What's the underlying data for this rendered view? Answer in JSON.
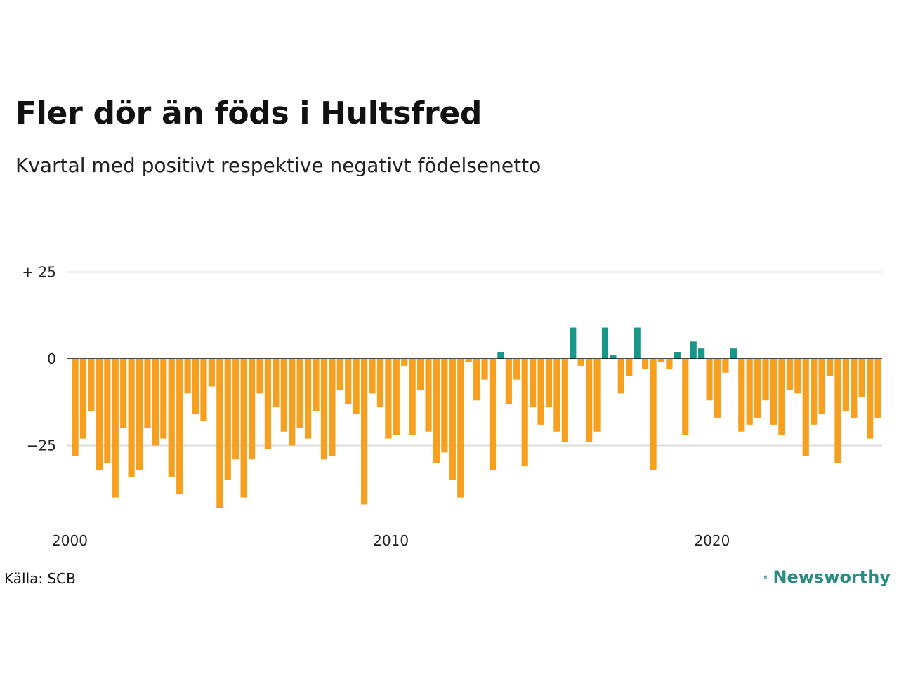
{
  "header": {
    "title": "Fler dör än föds i Hultsfred",
    "subtitle": "Kvartal med positivt respektive negativt födelsenetto"
  },
  "footer": {
    "source": "Källa: SCB",
    "brand": "Newsworthy",
    "brand_icon": "newsworthy-logo-icon"
  },
  "colors": {
    "positive": "#1a9688",
    "negative": "#f7a01f",
    "grid": "#dcdcdc",
    "zero_line": "#111111",
    "brand": "#2a8c80"
  },
  "chart_data": {
    "type": "bar",
    "y_ticks": [
      {
        "value": 25,
        "label": "+ 25"
      },
      {
        "value": 0,
        "label": "0"
      },
      {
        "value": -25,
        "label": "−25"
      }
    ],
    "x_ticks": [
      {
        "value": 2000,
        "label": "2000"
      },
      {
        "value": 2010,
        "label": "2010"
      },
      {
        "value": 2020,
        "label": "2020"
      }
    ],
    "x_range": [
      2000,
      2025.25
    ],
    "ylim": [
      -45,
      30
    ],
    "grid": true,
    "x_unit": "kvartal",
    "start_year": 2000,
    "values": [
      -28,
      -23,
      -15,
      -32,
      -30,
      -40,
      -20,
      -34,
      -32,
      -20,
      -25,
      -23,
      -34,
      -39,
      -10,
      -16,
      -18,
      -8,
      -43,
      -35,
      -29,
      -40,
      -29,
      -10,
      -26,
      -14,
      -21,
      -25,
      -20,
      -23,
      -15,
      -29,
      -28,
      -9,
      -13,
      -16,
      -42,
      -10,
      -14,
      -23,
      -22,
      -2,
      -22,
      -9,
      -21,
      -30,
      -27,
      -35,
      -40,
      -1,
      -12,
      -6,
      -32,
      2,
      -13,
      -6,
      -31,
      -14,
      -19,
      -14,
      -21,
      -24,
      9,
      -2,
      -24,
      -21,
      9,
      1,
      -10,
      -5,
      9,
      -3,
      -32,
      -1,
      -3,
      2,
      -22,
      5,
      3,
      -12,
      -17,
      -4,
      3,
      -21,
      -19,
      -17,
      -12,
      -19,
      -22,
      -9,
      -10,
      -28,
      -19,
      -16,
      -5,
      -30,
      -15,
      -17,
      -11,
      -23,
      -17
    ]
  }
}
